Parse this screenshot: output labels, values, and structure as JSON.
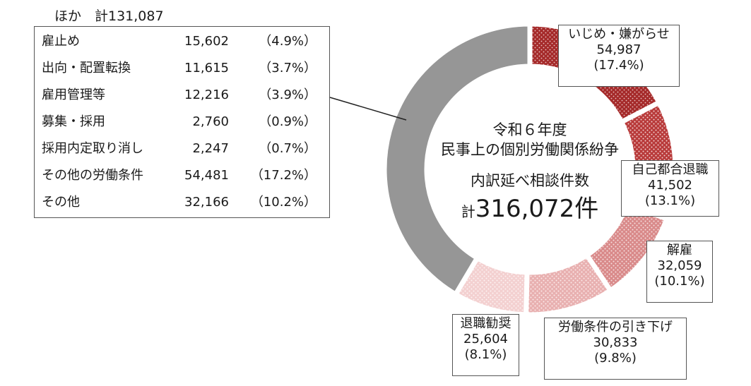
{
  "center": {
    "line1": "令和６年度",
    "line2": "民事上の個別労働関係紛争",
    "line3": "内訳延べ相談件数",
    "total_prefix": "計",
    "total_value": "316,072件"
  },
  "other_box": {
    "title": "ほか　計131,087",
    "rows": [
      {
        "name": "雇止め",
        "value": "15,602",
        "pct": "（4.9%）"
      },
      {
        "name": "出向・配置転換",
        "value": "11,615",
        "pct": "（3.7%）"
      },
      {
        "name": "雇用管理等",
        "value": "12,216",
        "pct": "（3.9%）"
      },
      {
        "name": "募集・採用",
        "value": "2,760",
        "pct": "（0.9%）"
      },
      {
        "name": "採用内定取り消し",
        "value": "2,247",
        "pct": "（0.7%）"
      },
      {
        "name": "その他の労働条件",
        "value": "54,481",
        "pct": "（17.2%）"
      },
      {
        "name": "その他",
        "value": "32,166",
        "pct": "（10.2%）"
      }
    ]
  },
  "labels": [
    {
      "name": "いじめ・嫌がらせ",
      "value": "54,987",
      "pct": "(17.4%)"
    },
    {
      "name": "自己都合退職",
      "value": "41,502",
      "pct": "(13.1%)"
    },
    {
      "name": "解雇",
      "value": "32,059",
      "pct": "(10.1%)"
    },
    {
      "name": "労働条件の引き下げ",
      "value": "30,833",
      "pct": "(9.8%)"
    },
    {
      "name": "退職勧奨",
      "value": "25,604",
      "pct": "(8.1%)"
    }
  ],
  "chart_data": {
    "type": "pie",
    "title": "令和６年度 民事上の個別労働関係紛争 内訳延べ相談件数",
    "total": 316072,
    "categories": [
      "いじめ・嫌がらせ",
      "自己都合退職",
      "解雇",
      "労働条件の引き下げ",
      "退職勧奨",
      "ほか"
    ],
    "values": [
      54987,
      41502,
      32059,
      30833,
      25604,
      131087
    ],
    "percentages": [
      17.4,
      13.1,
      10.1,
      9.8,
      8.1,
      41.5
    ],
    "colors": [
      "#a52a2a",
      "#b83a3a",
      "#d98a8a",
      "#e8b0b0",
      "#f3d0d0",
      "#969696"
    ],
    "hole": "donut",
    "other_breakdown": {
      "categories": [
        "雇止め",
        "出向・配置転換",
        "雇用管理等",
        "募集・採用",
        "採用内定取り消し",
        "その他の労働条件",
        "その他"
      ],
      "values": [
        15602,
        11615,
        12216,
        2760,
        2247,
        54481,
        32166
      ],
      "percentages": [
        4.9,
        3.7,
        3.9,
        0.9,
        0.7,
        17.2,
        10.2
      ]
    }
  }
}
